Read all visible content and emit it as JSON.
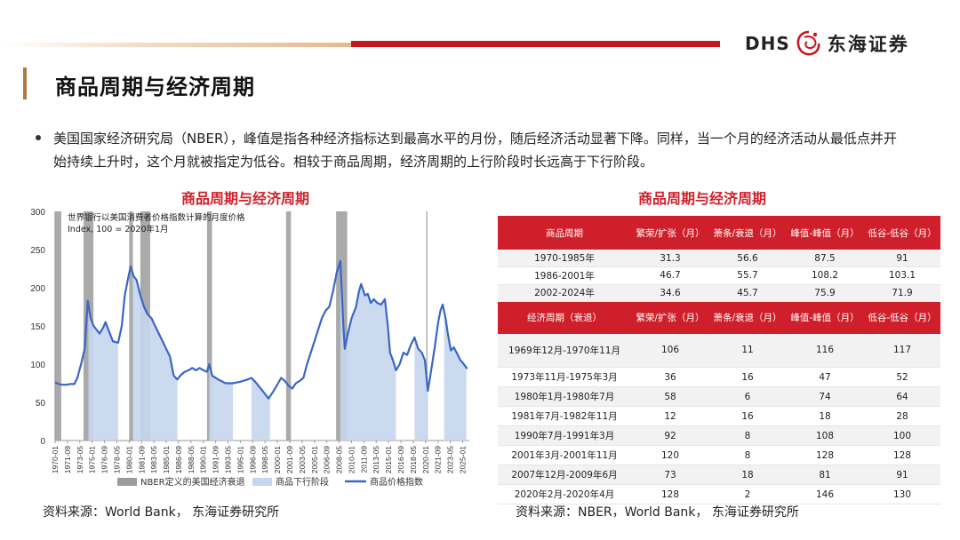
{
  "header": {
    "logo_latin": "DHS",
    "logo_cn": "东海证券",
    "page_title": "商品周期与经济周期"
  },
  "bullet": {
    "text": "美国国家经济研究局（NBER），峰值是指各种经济指标达到最高水平的月份，随后经济活动显著下降。同样，当一个月的经济活动从最低点并开始持续上升时，这个月就被指定为低谷。相较于商品周期，经济周期的上行阶段时长远高于下行阶段。"
  },
  "left_chart": {
    "title": "商品周期与经济周期",
    "source": "资料来源：World Bank， 东海证券研究所"
  },
  "chart_data": {
    "type": "line",
    "title": "商品周期与经济周期",
    "annotation_line1": "世界银行以美国消费者价格指数计算的月度价格",
    "annotation_line2": "Index, 100  = 2020年1月",
    "ylim": [
      0,
      300
    ],
    "yticks": [
      0,
      50,
      100,
      150,
      200,
      250,
      300
    ],
    "xlim": [
      1970.0,
      2025.9
    ],
    "xticks": [
      "1970-01",
      "1971-09",
      "1973-05",
      "1975-01",
      "1976-09",
      "1978-05",
      "1980-01",
      "1981-09",
      "1983-05",
      "1985-01",
      "1986-09",
      "1988-05",
      "1990-01",
      "1991-09",
      "1993-05",
      "1995-01",
      "1996-09",
      "1998-05",
      "2000-01",
      "2001-09",
      "2003-05",
      "2005-01",
      "2006-09",
      "2008-05",
      "2010-01",
      "2011-09",
      "2013-05",
      "2015-01",
      "2016-09",
      "2018-05",
      "2020-01",
      "2021-09",
      "2023-05",
      "2025-01"
    ],
    "legend": [
      "NBER定义的美国经济衰退",
      "商品下行阶段",
      "商品价格指数"
    ],
    "legend_position": "bottom",
    "colors": {
      "recession": "#9b9b9b",
      "downturn": "#c6d6ee",
      "line": "#3a66c4"
    },
    "recessions": [
      [
        1969.92,
        1970.83
      ],
      [
        1973.83,
        1975.17
      ],
      [
        1980.0,
        1980.5
      ],
      [
        1981.5,
        1982.83
      ],
      [
        1990.5,
        1991.17
      ],
      [
        2001.17,
        2001.83
      ],
      [
        2007.92,
        2009.42
      ],
      [
        2020.08,
        2020.25
      ]
    ],
    "downturns": [
      [
        1974.5,
        1978.5
      ],
      [
        1980.5,
        1986.5
      ],
      [
        1990.8,
        1994.0
      ],
      [
        1996.5,
        1999.0
      ],
      [
        2008.5,
        2016.0
      ],
      [
        2018.5,
        2020.3
      ],
      [
        2022.5,
        2025.5
      ]
    ],
    "series": [
      {
        "name": "商品价格指数",
        "points": [
          [
            1970.0,
            76
          ],
          [
            1970.5,
            74
          ],
          [
            1971.0,
            73
          ],
          [
            1971.5,
            73
          ],
          [
            1972.0,
            74
          ],
          [
            1972.6,
            74
          ],
          [
            1973.0,
            82
          ],
          [
            1973.5,
            100
          ],
          [
            1974.0,
            120
          ],
          [
            1974.4,
            183
          ],
          [
            1974.8,
            160
          ],
          [
            1975.2,
            150
          ],
          [
            1975.6,
            145
          ],
          [
            1976.0,
            140
          ],
          [
            1976.5,
            148
          ],
          [
            1976.8,
            155
          ],
          [
            1977.2,
            145
          ],
          [
            1977.8,
            130
          ],
          [
            1978.5,
            128
          ],
          [
            1979.0,
            150
          ],
          [
            1979.4,
            190
          ],
          [
            1979.8,
            210
          ],
          [
            1980.2,
            228
          ],
          [
            1980.6,
            215
          ],
          [
            1981.0,
            210
          ],
          [
            1981.5,
            190
          ],
          [
            1982.0,
            175
          ],
          [
            1982.5,
            165
          ],
          [
            1983.0,
            160
          ],
          [
            1983.5,
            150
          ],
          [
            1984.0,
            140
          ],
          [
            1984.5,
            130
          ],
          [
            1985.0,
            120
          ],
          [
            1985.5,
            110
          ],
          [
            1986.0,
            85
          ],
          [
            1986.5,
            80
          ],
          [
            1987.0,
            86
          ],
          [
            1987.5,
            90
          ],
          [
            1988.0,
            92
          ],
          [
            1988.5,
            95
          ],
          [
            1989.0,
            92
          ],
          [
            1989.5,
            95
          ],
          [
            1990.0,
            92
          ],
          [
            1990.5,
            90
          ],
          [
            1990.8,
            100
          ],
          [
            1991.2,
            85
          ],
          [
            1992.0,
            80
          ],
          [
            1993.0,
            75
          ],
          [
            1994.0,
            75
          ],
          [
            1995.0,
            77
          ],
          [
            1996.0,
            80
          ],
          [
            1996.5,
            82
          ],
          [
            1997.0,
            77
          ],
          [
            1998.0,
            65
          ],
          [
            1998.8,
            55
          ],
          [
            1999.5,
            65
          ],
          [
            2000.5,
            82
          ],
          [
            2001.0,
            78
          ],
          [
            2001.5,
            72
          ],
          [
            2002.0,
            68
          ],
          [
            2002.5,
            75
          ],
          [
            2003.0,
            78
          ],
          [
            2003.5,
            82
          ],
          [
            2004.0,
            100
          ],
          [
            2004.5,
            115
          ],
          [
            2005.0,
            130
          ],
          [
            2005.5,
            145
          ],
          [
            2006.0,
            160
          ],
          [
            2006.5,
            170
          ],
          [
            2007.0,
            175
          ],
          [
            2007.5,
            195
          ],
          [
            2008.0,
            220
          ],
          [
            2008.5,
            235
          ],
          [
            2008.9,
            150
          ],
          [
            2009.1,
            120
          ],
          [
            2009.5,
            140
          ],
          [
            2010.0,
            160
          ],
          [
            2010.6,
            175
          ],
          [
            2011.0,
            195
          ],
          [
            2011.3,
            205
          ],
          [
            2011.8,
            190
          ],
          [
            2012.2,
            192
          ],
          [
            2012.6,
            180
          ],
          [
            2013.0,
            185
          ],
          [
            2013.5,
            180
          ],
          [
            2014.0,
            178
          ],
          [
            2014.5,
            185
          ],
          [
            2014.9,
            150
          ],
          [
            2015.2,
            115
          ],
          [
            2015.6,
            105
          ],
          [
            2016.0,
            92
          ],
          [
            2016.5,
            100
          ],
          [
            2017.0,
            115
          ],
          [
            2017.5,
            112
          ],
          [
            2018.0,
            125
          ],
          [
            2018.5,
            135
          ],
          [
            2019.0,
            120
          ],
          [
            2019.5,
            115
          ],
          [
            2019.9,
            105
          ],
          [
            2020.3,
            65
          ],
          [
            2020.8,
            95
          ],
          [
            2021.2,
            120
          ],
          [
            2021.7,
            155
          ],
          [
            2022.0,
            170
          ],
          [
            2022.3,
            178
          ],
          [
            2022.7,
            160
          ],
          [
            2023.0,
            140
          ],
          [
            2023.4,
            118
          ],
          [
            2023.8,
            122
          ],
          [
            2024.2,
            115
          ],
          [
            2024.7,
            105
          ],
          [
            2025.0,
            102
          ],
          [
            2025.3,
            98
          ],
          [
            2025.6,
            94
          ]
        ]
      }
    ]
  },
  "right_table": {
    "title": "商品周期与经济周期",
    "source": "资料来源：NBER，World Bank， 东海证券研究所",
    "columns": [
      "繁荣/扩张（月）",
      "萧条/衰退（月）",
      "峰值-峰值（月）",
      "低谷-低谷（月）"
    ],
    "commodity_header": "商品周期",
    "commodity_rows": [
      {
        "period": "1970-1985年",
        "v": [
          "31.3",
          "56.6",
          "87.5",
          "91"
        ]
      },
      {
        "period": "1986-2001年",
        "v": [
          "46.7",
          "55.7",
          "108.2",
          "103.1"
        ]
      },
      {
        "period": "2002-2024年",
        "v": [
          "34.6",
          "45.7",
          "75.9",
          "71.9"
        ]
      }
    ],
    "economic_header": "经济周期（衰退）",
    "economic_rows": [
      {
        "period": "1969年12月-1970年11月",
        "v": [
          "106",
          "11",
          "116",
          "117"
        ]
      },
      {
        "period": "1973年11月-1975年3月",
        "v": [
          "36",
          "16",
          "47",
          "52"
        ]
      },
      {
        "period": "1980年1月-1980年7月",
        "v": [
          "58",
          "6",
          "74",
          "64"
        ]
      },
      {
        "period": "1981年7月-1982年11月",
        "v": [
          "12",
          "16",
          "18",
          "28"
        ]
      },
      {
        "period": "1990年7月-1991年3月",
        "v": [
          "92",
          "8",
          "108",
          "100"
        ]
      },
      {
        "period": "2001年3月-2001年11月",
        "v": [
          "120",
          "8",
          "128",
          "128"
        ]
      },
      {
        "period": "2007年12月-2009年6月",
        "v": [
          "73",
          "18",
          "81",
          "91"
        ]
      },
      {
        "period": "2020年2月-2020年4月",
        "v": [
          "128",
          "2",
          "146",
          "130"
        ]
      }
    ]
  }
}
